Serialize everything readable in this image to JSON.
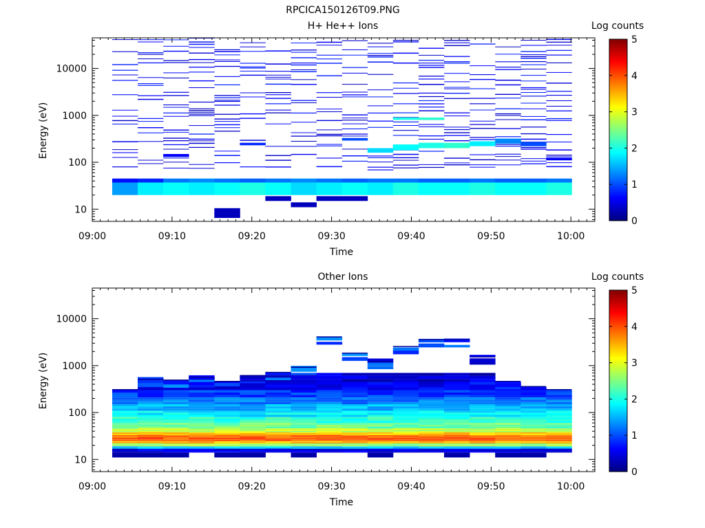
{
  "figure": {
    "title": "RPCICA150126T09.PNG"
  },
  "colorbar": {
    "label": "Log counts",
    "range": [
      0,
      5
    ],
    "ticks": [
      "0",
      "1",
      "2",
      "3",
      "4",
      "5"
    ],
    "colormap": "jet",
    "stops": [
      "#00007f",
      "#0000ff",
      "#0080ff",
      "#00ffff",
      "#80ff80",
      "#ffff00",
      "#ff8000",
      "#ff0000",
      "#7f0000"
    ]
  },
  "chart_data": [
    {
      "type": "heatmap",
      "title": "H+ He++ Ions",
      "xlabel": "Time",
      "ylabel": "Energy (eV)",
      "x_ticks": [
        "09:00",
        "09:10",
        "09:20",
        "09:30",
        "09:40",
        "09:50",
        "10:00"
      ],
      "xlim_minutes": [
        0,
        63
      ],
      "y_scale": "log",
      "ylim": [
        5.5,
        45000
      ],
      "y_ticks": [
        "10",
        "100",
        "1000",
        "10000"
      ],
      "time_bins_minutes": [
        [
          2.5,
          5.7
        ],
        [
          5.7,
          8.9
        ],
        [
          8.9,
          12.1
        ],
        [
          12.1,
          15.3
        ],
        [
          15.3,
          18.5
        ],
        [
          18.5,
          21.7
        ],
        [
          21.7,
          24.9
        ],
        [
          24.9,
          28.1
        ],
        [
          28.1,
          31.3
        ],
        [
          31.3,
          34.5
        ],
        [
          34.5,
          37.7
        ],
        [
          37.7,
          40.9
        ],
        [
          40.9,
          44.1
        ],
        [
          44.1,
          47.3
        ],
        [
          47.3,
          50.5
        ],
        [
          50.5,
          53.7
        ],
        [
          53.7,
          56.9
        ],
        [
          56.9,
          60.1
        ]
      ],
      "low_band": [
        {
          "e": [
            20,
            37
          ],
          "v": [
            1.4,
            1.8,
            1.9,
            1.8,
            1.9,
            2.0,
            1.9,
            1.7,
            1.8,
            1.9,
            1.8,
            2.0,
            1.9,
            1.9,
            2.0,
            1.9,
            1.9,
            2.0
          ]
        },
        {
          "e": [
            37,
            45
          ],
          "v": [
            0.7,
            0.8,
            1.2,
            1.3,
            1.2,
            1.1,
            1.2,
            1.3,
            1.2,
            1.1,
            1.2,
            1.2,
            1.1,
            1.1,
            1.2,
            1.1,
            1.1,
            1.2
          ]
        }
      ],
      "cells": [
        {
          "t": 4,
          "e": [
            6.5,
            10.5
          ],
          "v": 0.3
        },
        {
          "t": 7,
          "e": [
            11,
            14
          ],
          "v": 0.3
        },
        {
          "t": 8,
          "e": [
            15,
            19
          ],
          "v": 0.3
        },
        {
          "t": 6,
          "e": [
            15,
            19
          ],
          "v": 0.3
        },
        {
          "t": 9,
          "e": [
            15,
            19
          ],
          "v": 0.3
        },
        {
          "t": 10,
          "e": [
            160,
            200
          ],
          "v": 1.7
        },
        {
          "t": 11,
          "e": [
            180,
            240
          ],
          "v": 1.9
        },
        {
          "t": 12,
          "e": [
            200,
            260
          ],
          "v": 2.0
        },
        {
          "t": 13,
          "e": [
            200,
            260
          ],
          "v": 2.1
        },
        {
          "t": 14,
          "e": [
            220,
            280
          ],
          "v": 1.8
        },
        {
          "t": 15,
          "e": [
            250,
            320
          ],
          "v": 1.3
        },
        {
          "t": 16,
          "e": [
            220,
            270
          ],
          "v": 1.0
        },
        {
          "t": 11,
          "e": [
            800,
            900
          ],
          "v": 2.0
        },
        {
          "t": 12,
          "e": [
            800,
            900
          ],
          "v": 2.1
        },
        {
          "t": 2,
          "e": [
            130,
            150
          ],
          "v": 0.6
        },
        {
          "t": 5,
          "e": [
            230,
            260
          ],
          "v": 0.8
        },
        {
          "t": 9,
          "e": [
            290,
            330
          ],
          "v": 1.0
        },
        {
          "t": 17,
          "e": [
            110,
            125
          ],
          "v": 0.6
        }
      ],
      "sparse_lines": {
        "e_range": [
          60,
          42000
        ],
        "v": 0.3
      }
    },
    {
      "type": "heatmap",
      "title": "Other Ions",
      "xlabel": "Time",
      "ylabel": "Energy (eV)",
      "x_ticks": [
        "09:00",
        "09:10",
        "09:20",
        "09:30",
        "09:40",
        "09:50",
        "10:00"
      ],
      "xlim_minutes": [
        0,
        63
      ],
      "y_scale": "log",
      "ylim": [
        5.5,
        45000
      ],
      "y_ticks": [
        "10",
        "100",
        "1000",
        "10000"
      ],
      "time_bins_minutes": [
        [
          2.5,
          5.7
        ],
        [
          5.7,
          8.9
        ],
        [
          8.9,
          12.1
        ],
        [
          12.1,
          15.3
        ],
        [
          15.3,
          18.5
        ],
        [
          18.5,
          21.7
        ],
        [
          21.7,
          24.9
        ],
        [
          24.9,
          28.1
        ],
        [
          28.1,
          31.3
        ],
        [
          31.3,
          34.5
        ],
        [
          34.5,
          37.7
        ],
        [
          37.7,
          40.9
        ],
        [
          40.9,
          44.1
        ],
        [
          44.1,
          47.3
        ],
        [
          47.3,
          50.5
        ],
        [
          50.5,
          53.7
        ],
        [
          53.7,
          56.9
        ],
        [
          56.9,
          60.1
        ]
      ],
      "top_energy_eV": [
        300,
        500,
        480,
        550,
        450,
        600,
        700,
        900,
        4000,
        1800,
        1200,
        2500,
        3500,
        3500,
        1500,
        450,
        350,
        300
      ],
      "profile": [
        {
          "e": [
            14,
            17
          ],
          "v": 0.5
        },
        {
          "e": [
            17,
            19
          ],
          "v": 1.6
        },
        {
          "e": [
            19,
            22
          ],
          "v": 2.6
        },
        {
          "e": [
            22,
            25
          ],
          "v": 3.5
        },
        {
          "e": [
            25,
            29
          ],
          "v": 4.0
        },
        {
          "e": [
            29,
            33
          ],
          "v": 3.9
        },
        {
          "e": [
            33,
            38
          ],
          "v": 3.4
        },
        {
          "e": [
            38,
            46
          ],
          "v": 2.8
        },
        {
          "e": [
            46,
            60
          ],
          "v": 2.4
        },
        {
          "e": [
            60,
            80
          ],
          "v": 2.1
        },
        {
          "e": [
            80,
            110
          ],
          "v": 1.8
        },
        {
          "e": [
            110,
            150
          ],
          "v": 1.5
        },
        {
          "e": [
            150,
            210
          ],
          "v": 1.2
        },
        {
          "e": [
            210,
            300
          ],
          "v": 0.9
        },
        {
          "e": [
            300,
            450
          ],
          "v": 0.6
        },
        {
          "e": [
            450,
            700
          ],
          "v": 0.4
        }
      ],
      "sparse_lines": {
        "v": 0.2
      }
    }
  ]
}
